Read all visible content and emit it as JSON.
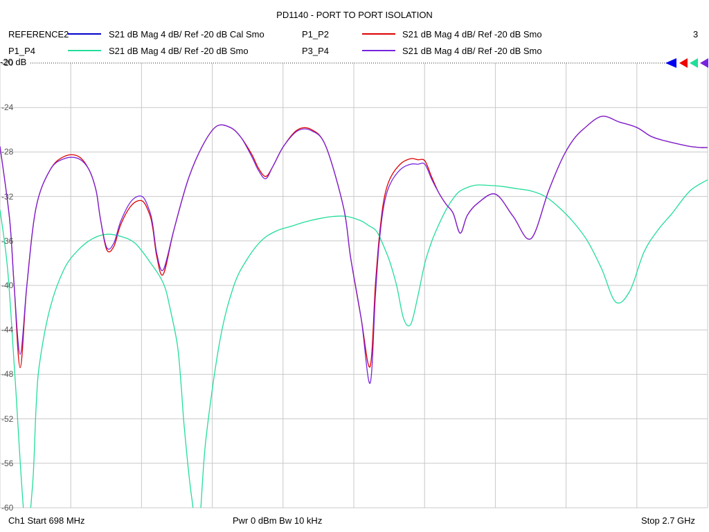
{
  "title": "PD1140 - PORT TO PORT ISOLATION",
  "legend": [
    {
      "name": "REFERENCE2",
      "desc": "S21  dB Mag  4 dB/ Ref -20 dB  Cal Smo",
      "color": "#0000cc"
    },
    {
      "name": "P1_P2",
      "desc": "S21  dB Mag  4 dB/ Ref -20 dB  Smo",
      "color": "#dd0000"
    },
    {
      "name": "P1_P4",
      "desc": "S21  dB Mag  4 dB/ Ref -20 dB  Smo",
      "color": "#22dd99"
    },
    {
      "name": "P3_P4",
      "desc": "S21  dB Mag  4 dB/ Ref -20 dB  Smo",
      "color": "#7722dd"
    }
  ],
  "trace_count": "3",
  "ref_label": "-20 dB",
  "footer": {
    "start": "Ch1  Start  698 MHz",
    "power": "Pwr  0 dBm  Bw  10 kHz",
    "stop": "Stop  2.7 GHz"
  },
  "chart_data": {
    "type": "line",
    "xlabel": "",
    "ylabel": "",
    "xlim": [
      698,
      2700
    ],
    "x_unit": "MHz",
    "ylim": [
      -60,
      -20
    ],
    "yticks": [
      "-20",
      "-24",
      "-28",
      "-32",
      "-36",
      "-40",
      "-44",
      "-48",
      "-52",
      "-56",
      "-60"
    ],
    "grid": true,
    "series": [
      {
        "name": "P1_P2",
        "color": "#dd0000",
        "x": [
          698,
          725,
          738,
          755,
          774,
          800,
          840,
          880,
          920,
          950,
          970,
          982,
          1000,
          1020,
          1040,
          1070,
          1100,
          1120,
          1130,
          1142,
          1160,
          1190,
          1230,
          1270,
          1310,
          1350,
          1380,
          1410,
          1430,
          1450,
          1470,
          1500,
          1540,
          1580,
          1620,
          1670,
          1690,
          1720,
          1745,
          1760,
          1770,
          1783,
          1800,
          1830,
          1860,
          1880,
          1900,
          1920,
          1940,
          1960,
          1980,
          2000,
          2020,
          2050,
          2100,
          2150,
          2200,
          2250,
          2290,
          2320,
          2350,
          2400,
          2450,
          2500,
          2540,
          2580,
          2620,
          2650,
          2680,
          2700
        ],
        "y": [
          -27.5,
          -34,
          -40,
          -47.4,
          -40,
          -33,
          -29.6,
          -28.4,
          -28.4,
          -29.6,
          -31.5,
          -34,
          -36.8,
          -36.5,
          -34.5,
          -32.8,
          -32.4,
          -33.5,
          -34.8,
          -37.5,
          -39,
          -35,
          -30.5,
          -27.5,
          -25.7,
          -25.8,
          -26.7,
          -28.2,
          -29.5,
          -30.2,
          -29.3,
          -27.5,
          -26,
          -26,
          -27.5,
          -33,
          -37.5,
          -43,
          -47.3,
          -40,
          -36,
          -32.5,
          -30.5,
          -29.1,
          -28.6,
          -28.7,
          -28.8,
          -30.3,
          -31.7,
          -32.7,
          -33.5,
          -35.3,
          -33.7,
          -32.6,
          -31.8,
          -33.8,
          -35.8,
          -31.5,
          -28.5,
          -26.9,
          -25.9,
          -24.8,
          -25.3,
          -25.8,
          -26.6,
          -27,
          -27.3,
          -27.5,
          -27.6,
          -27.6
        ]
      },
      {
        "name": "P1_P4",
        "color": "#22dd99",
        "x": [
          698,
          720,
          740,
          770,
          790,
          800,
          810,
          840,
          880,
          920,
          960,
          1000,
          1040,
          1080,
          1120,
          1160,
          1180,
          1200,
          1210,
          1220,
          1240,
          1260,
          1280,
          1320,
          1360,
          1400,
          1440,
          1480,
          1520,
          1560,
          1600,
          1640,
          1680,
          1720,
          1740,
          1760,
          1770,
          1780,
          1800,
          1820,
          1840,
          1860,
          1880,
          1900,
          1920,
          1940,
          1960,
          1980,
          2000,
          2040,
          2080,
          2120,
          2160,
          2200,
          2240,
          2280,
          2320,
          2360,
          2400,
          2440,
          2480,
          2520,
          2560,
          2600,
          2650,
          2700
        ],
        "y": [
          -33.2,
          -38.7,
          -48,
          -62,
          -58,
          -51,
          -47,
          -42,
          -38.5,
          -36.8,
          -35.8,
          -35.4,
          -35.6,
          -36.2,
          -37.8,
          -39.8,
          -42.2,
          -45.4,
          -48.8,
          -53,
          -59,
          -62,
          -54,
          -45,
          -40,
          -37.5,
          -35.9,
          -35.1,
          -34.7,
          -34.3,
          -34,
          -33.8,
          -33.8,
          -34.2,
          -34.6,
          -35,
          -35.5,
          -36.2,
          -37.8,
          -40,
          -43,
          -43.5,
          -41,
          -38,
          -36,
          -34.5,
          -33.2,
          -32.2,
          -31.5,
          -31,
          -31,
          -31.1,
          -31.3,
          -31.5,
          -32,
          -33,
          -34.3,
          -36,
          -38.5,
          -41.5,
          -40.5,
          -37,
          -35,
          -33.5,
          -31.5,
          -30.5
        ]
      },
      {
        "name": "P3_P4",
        "color": "#7722dd",
        "x": [
          698,
          725,
          738,
          755,
          774,
          800,
          840,
          880,
          920,
          950,
          970,
          982,
          1000,
          1020,
          1040,
          1070,
          1100,
          1120,
          1130,
          1142,
          1160,
          1190,
          1230,
          1270,
          1310,
          1350,
          1380,
          1410,
          1430,
          1450,
          1470,
          1500,
          1540,
          1580,
          1620,
          1670,
          1690,
          1720,
          1745,
          1760,
          1770,
          1783,
          1800,
          1830,
          1860,
          1880,
          1900,
          1920,
          1940,
          1960,
          1980,
          2000,
          2020,
          2050,
          2100,
          2150,
          2200,
          2250,
          2290,
          2320,
          2350,
          2400,
          2450,
          2500,
          2540,
          2580,
          2620,
          2650,
          2680,
          2700
        ],
        "y": [
          -27.5,
          -34,
          -40,
          -46.2,
          -40,
          -33,
          -29.6,
          -28.6,
          -28.6,
          -29.6,
          -31.5,
          -34,
          -36.6,
          -36.2,
          -34.2,
          -32.4,
          -32,
          -33.2,
          -34.5,
          -37.2,
          -38.6,
          -35,
          -30.5,
          -27.5,
          -25.7,
          -25.8,
          -26.7,
          -28.4,
          -29.7,
          -30.4,
          -29.3,
          -27.5,
          -26.1,
          -26.1,
          -27.5,
          -33,
          -37.5,
          -43,
          -48.8,
          -41,
          -36.5,
          -33,
          -31,
          -29.6,
          -29.1,
          -29.1,
          -29.1,
          -30.5,
          -31.7,
          -32.7,
          -33.5,
          -35.3,
          -33.7,
          -32.6,
          -31.8,
          -33.8,
          -35.8,
          -31.5,
          -28.5,
          -26.9,
          -25.9,
          -24.8,
          -25.3,
          -25.8,
          -26.6,
          -27,
          -27.3,
          -27.5,
          -27.6,
          -27.6
        ]
      },
      {
        "name": "REFERENCE2",
        "color": "#0000cc",
        "x": [],
        "y": []
      }
    ]
  }
}
